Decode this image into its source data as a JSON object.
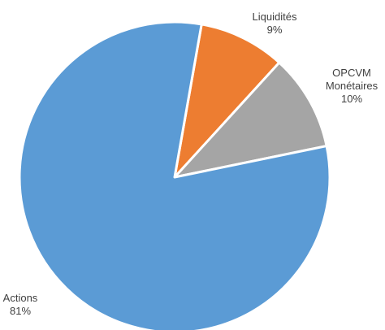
{
  "chart_data": {
    "type": "pie",
    "title": "",
    "start_angle_deg": 10,
    "direction": "clockwise",
    "slices": [
      {
        "label": "Liquidités",
        "value": 9,
        "value_label": "9%",
        "color": "#ED7D31"
      },
      {
        "label_lines": [
          "OPCVM",
          "Monétaires"
        ],
        "label": "OPCVM Monétaires",
        "value": 10,
        "value_label": "10%",
        "color": "#A5A5A5"
      },
      {
        "label": "Actions",
        "value": 81,
        "value_label": "81%",
        "color": "#5B9BD5"
      }
    ]
  }
}
